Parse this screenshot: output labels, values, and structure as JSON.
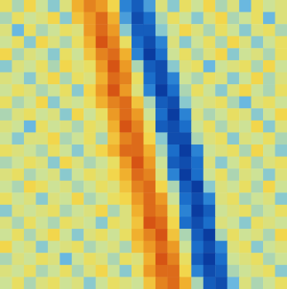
{
  "chart_data": {
    "type": "heatmap",
    "tick_labels": false,
    "cells": [
      [
        2,
        -1,
        3,
        0,
        -2,
        1,
        5,
        7,
        6,
        3,
        -5,
        -7,
        -4,
        1,
        -2,
        2,
        0,
        3,
        -1,
        1,
        -3,
        2,
        0,
        1
      ],
      [
        -1,
        2,
        0,
        1,
        3,
        -2,
        4,
        6,
        8,
        5,
        -4,
        -8,
        -6,
        -1,
        2,
        0,
        -2,
        1,
        3,
        -1,
        0,
        2,
        -3,
        1
      ],
      [
        1,
        -3,
        2,
        -1,
        0,
        2,
        1,
        6,
        8,
        6,
        -2,
        -7,
        -7,
        -2,
        0,
        3,
        1,
        -1,
        2,
        0,
        -2,
        1,
        2,
        -1
      ],
      [
        0,
        2,
        -2,
        3,
        1,
        -1,
        2,
        5,
        9,
        7,
        2,
        -6,
        -8,
        -5,
        1,
        -2,
        0,
        2,
        -1,
        3,
        1,
        -2,
        0,
        2
      ],
      [
        3,
        -1,
        1,
        0,
        -2,
        2,
        0,
        4,
        7,
        8,
        5,
        -5,
        -9,
        -6,
        0,
        2,
        -1,
        1,
        3,
        -2,
        0,
        1,
        -1,
        2
      ],
      [
        -2,
        1,
        0,
        2,
        -1,
        3,
        1,
        2,
        6,
        9,
        6,
        -1,
        -7,
        -8,
        -2,
        1,
        2,
        -3,
        0,
        1,
        2,
        -1,
        3,
        0
      ],
      [
        1,
        0,
        -2,
        1,
        3,
        -1,
        2,
        1,
        5,
        8,
        7,
        2,
        -6,
        -8,
        -5,
        0,
        -1,
        2,
        1,
        -2,
        0,
        3,
        -1,
        1
      ],
      [
        0,
        2,
        1,
        -1,
        0,
        2,
        -2,
        3,
        6,
        9,
        6,
        1,
        -5,
        -9,
        -6,
        -1,
        2,
        0,
        -2,
        1,
        3,
        0,
        -1,
        2
      ],
      [
        2,
        -1,
        0,
        3,
        -2,
        1,
        0,
        2,
        5,
        7,
        8,
        4,
        -1,
        -7,
        -8,
        -2,
        0,
        1,
        2,
        -1,
        -3,
        1,
        2,
        0
      ],
      [
        -1,
        1,
        2,
        0,
        1,
        -2,
        3,
        0,
        2,
        6,
        8,
        6,
        0,
        -6,
        -9,
        -5,
        1,
        -1,
        0,
        2,
        1,
        -2,
        0,
        3
      ],
      [
        1,
        0,
        -3,
        2,
        0,
        1,
        -1,
        2,
        1,
        5,
        9,
        7,
        2,
        -7,
        -8,
        -6,
        0,
        2,
        -1,
        1,
        0,
        3,
        -2,
        1
      ],
      [
        0,
        -2,
        1,
        1,
        3,
        -1,
        0,
        2,
        -1,
        4,
        7,
        8,
        3,
        -2,
        -8,
        -8,
        -1,
        1,
        2,
        -2,
        1,
        0,
        2,
        -1
      ],
      [
        2,
        1,
        0,
        -1,
        2,
        0,
        -2,
        1,
        3,
        5,
        8,
        8,
        5,
        -1,
        -6,
        -9,
        -5,
        0,
        1,
        2,
        -1,
        3,
        0,
        -2
      ],
      [
        -1,
        0,
        2,
        1,
        -2,
        3,
        1,
        -1,
        0,
        2,
        6,
        9,
        6,
        0,
        -7,
        -8,
        -6,
        1,
        -2,
        0,
        2,
        -1,
        1,
        2
      ],
      [
        1,
        2,
        -1,
        0,
        1,
        -2,
        0,
        2,
        1,
        3,
        5,
        8,
        7,
        1,
        -5,
        -9,
        -6,
        0,
        2,
        -1,
        1,
        0,
        -2,
        1
      ],
      [
        0,
        -1,
        3,
        2,
        0,
        1,
        -1,
        0,
        2,
        1,
        4,
        7,
        8,
        3,
        -1,
        -7,
        -9,
        -2,
        1,
        0,
        2,
        -1,
        3,
        0
      ],
      [
        2,
        0,
        1,
        -2,
        1,
        0,
        3,
        -1,
        0,
        2,
        3,
        6,
        8,
        6,
        0,
        -6,
        -8,
        -5,
        1,
        2,
        -1,
        0,
        1,
        -2
      ],
      [
        -2,
        1,
        0,
        1,
        2,
        -1,
        0,
        1,
        3,
        -1,
        1,
        5,
        8,
        7,
        2,
        -5,
        -9,
        -7,
        0,
        1,
        2,
        -1,
        0,
        2
      ],
      [
        1,
        -1,
        2,
        0,
        -1,
        2,
        1,
        0,
        -2,
        2,
        1,
        4,
        9,
        8,
        3,
        -6,
        -8,
        -6,
        1,
        0,
        -2,
        2,
        1,
        0
      ],
      [
        0,
        2,
        -1,
        1,
        3,
        0,
        -2,
        1,
        2,
        0,
        2,
        5,
        7,
        9,
        4,
        -1,
        -7,
        -9,
        -1,
        2,
        0,
        1,
        -1,
        3
      ],
      [
        3,
        0,
        1,
        -2,
        0,
        1,
        2,
        -1,
        0,
        1,
        -1,
        4,
        6,
        8,
        6,
        0,
        -6,
        -8,
        -5,
        1,
        2,
        -2,
        0,
        1
      ],
      [
        -1,
        1,
        0,
        2,
        1,
        -3,
        0,
        2,
        1,
        -1,
        2,
        1,
        5,
        9,
        7,
        2,
        -7,
        -9,
        -6,
        0,
        1,
        2,
        -1,
        0
      ],
      [
        1,
        0,
        2,
        -1,
        0,
        2,
        -1,
        1,
        3,
        0,
        -2,
        2,
        6,
        8,
        8,
        3,
        -5,
        -8,
        -7,
        -1,
        0,
        1,
        2,
        -2
      ],
      [
        0,
        2,
        -1,
        1,
        2,
        0,
        1,
        -2,
        0,
        2,
        1,
        0,
        4,
        7,
        8,
        5,
        -1,
        -7,
        -8,
        -3,
        1,
        -1,
        0,
        2
      ]
    ]
  }
}
